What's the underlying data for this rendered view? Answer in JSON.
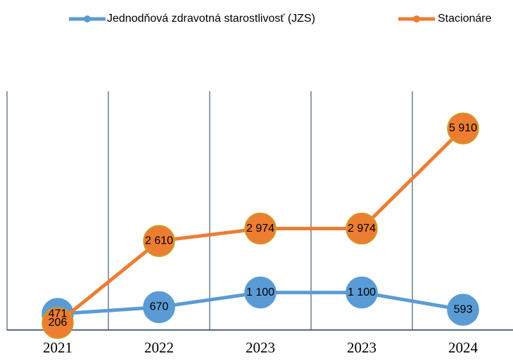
{
  "chart_data": {
    "type": "line",
    "categories": [
      "2021",
      "2022",
      "2023",
      "2023",
      "2024"
    ],
    "series": [
      {
        "name": "Jednodňová zdravotná starostlivosť (JZS)",
        "color": "#5b9bd5",
        "values": [
          471,
          670,
          1100,
          1100,
          593
        ],
        "value_labels": [
          "471",
          "670",
          "1 100",
          "1 100",
          "593"
        ]
      },
      {
        "name": "Stacionáre",
        "color": "#ed7d31",
        "values": [
          206,
          2610,
          2974,
          2974,
          5910
        ],
        "value_labels": [
          "206",
          "2 610",
          "2 974",
          "2 974",
          "5 910"
        ]
      }
    ],
    "ylim": [
      0,
      7000
    ],
    "legend": "top"
  }
}
